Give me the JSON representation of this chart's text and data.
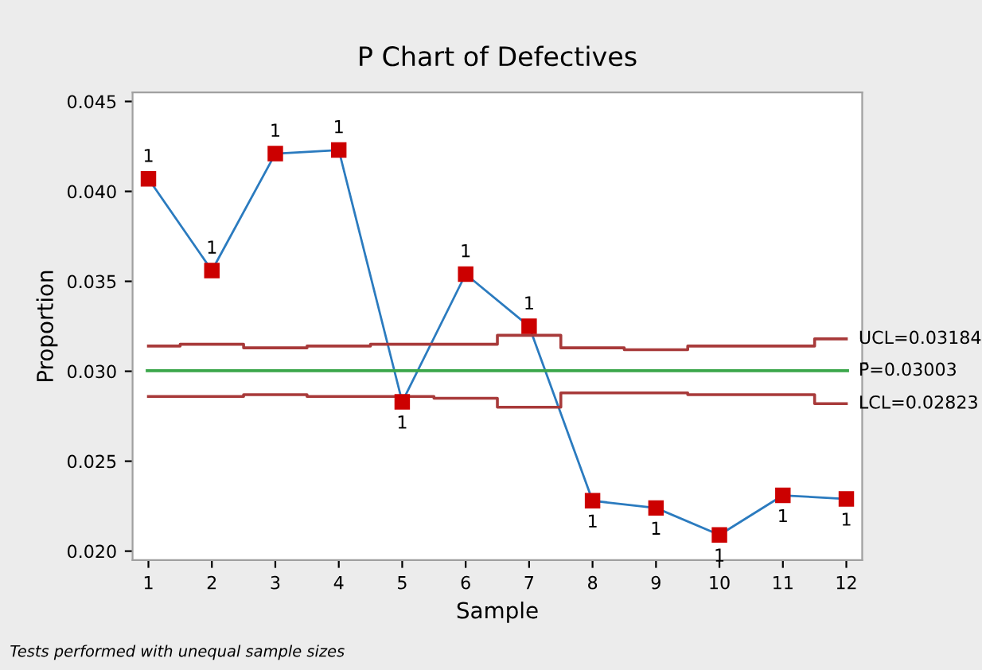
{
  "chart_data": {
    "type": "line",
    "title": "P Chart of Defectives",
    "xlabel": "Sample",
    "ylabel": "Proportion",
    "x": [
      1,
      2,
      3,
      4,
      5,
      6,
      7,
      8,
      9,
      10,
      11,
      12
    ],
    "series": [
      {
        "color": "#2b7bbf",
        "colors": [
          "#cc0000",
          "#cc0000",
          "#cc0000",
          "#cc0000",
          "#cc0000",
          "#cc0000",
          "#cc0000",
          "#cc0000",
          "#cc0000",
          "#cc0000",
          "#cc0000",
          "#cc0000"
        ],
        "marker": "square",
        "values": [
          0.0407,
          0.0356,
          0.0421,
          0.0423,
          0.0283,
          0.0354,
          0.0325,
          0.0228,
          0.0224,
          0.0209,
          0.0231,
          0.0229
        ]
      },
      {
        "type": "step",
        "name": "UCL=0.03184",
        "color": "#a83a3a",
        "marker": "none",
        "values": [
          0.0314,
          0.0315,
          0.0313,
          0.0314,
          0.0315,
          0.0315,
          0.032,
          0.0313,
          0.0312,
          0.0314,
          0.0314,
          0.0318
        ]
      },
      {
        "type": "step",
        "name": "LCL=0.02823",
        "color": "#a83a3a",
        "marker": "none",
        "values": [
          0.0286,
          0.0286,
          0.0287,
          0.0286,
          0.0286,
          0.0285,
          0.028,
          0.0288,
          0.0288,
          0.0287,
          0.0287,
          0.0282
        ]
      }
    ],
    "ref_lines": [
      {
        "axis": "y",
        "value": 0.03003,
        "label": "P̄=0.03003",
        "color": "#3aa64a"
      }
    ],
    "xlim": [
      0.75,
      12.25
    ],
    "xticks": [
      1,
      2,
      3,
      4,
      5,
      6,
      7,
      8,
      9,
      10,
      11,
      12
    ],
    "ylim": [
      0.0195,
      0.0455
    ],
    "yticks": [
      {
        "value": 0.02,
        "label": "0.020"
      },
      {
        "value": 0.025,
        "label": "0.025"
      },
      {
        "value": 0.03,
        "label": "0.030"
      },
      {
        "value": 0.035,
        "label": "0.035"
      },
      {
        "value": 0.04,
        "label": "0.040"
      },
      {
        "value": 0.045,
        "label": "0.045"
      }
    ],
    "grid": false,
    "legend": false,
    "annotations": [
      "Tests performed with unequal sample sizes",
      {
        "text": "1",
        "x": 1,
        "y": 0.0407
      },
      {
        "text": "1",
        "x": 2,
        "y": 0.0356
      },
      {
        "text": "1",
        "x": 3,
        "y": 0.0421
      },
      {
        "text": "1",
        "x": 4,
        "y": 0.0423
      },
      {
        "text": "1",
        "x": 5,
        "y": 0.0283
      },
      {
        "text": "1",
        "x": 6,
        "y": 0.0354
      },
      {
        "text": "1",
        "x": 7,
        "y": 0.0325
      },
      {
        "text": "1",
        "x": 8,
        "y": 0.0228
      },
      {
        "text": "1",
        "x": 9,
        "y": 0.0224
      },
      {
        "text": "1",
        "x": 10,
        "y": 0.0209
      },
      {
        "text": "1",
        "x": 11,
        "y": 0.0231
      },
      {
        "text": "1",
        "x": 12,
        "y": 0.0229
      }
    ]
  }
}
